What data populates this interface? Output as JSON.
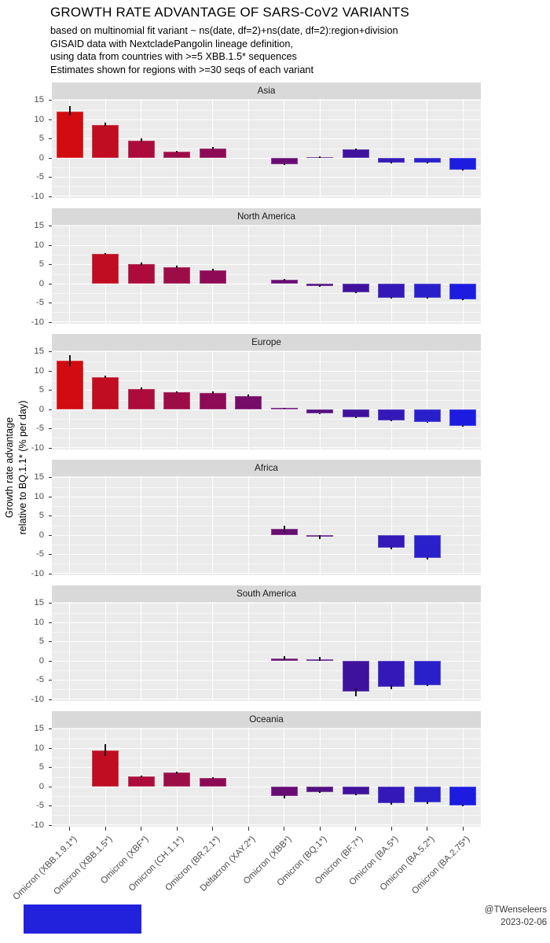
{
  "header": {
    "title": "GROWTH RATE ADVANTAGE OF SARS-CoV2 VARIANTS",
    "subtitle_lines": [
      "based on multinomial fit variant ~ ns(date, df=2)+ns(date, df=2):region+division",
      "GISAID data with NextcladePangolin lineage definition,",
      "using data from countries with >=5 XBB.1.5* sequences",
      "Estimates shown for regions with >=30 seqs of each variant"
    ]
  },
  "chart_data": {
    "type": "bar",
    "facet_by": "region",
    "regions": [
      "Asia",
      "North America",
      "Europe",
      "Africa",
      "South America",
      "Oceania"
    ],
    "categories": [
      "Omicron (XBB.1.9.1*)",
      "Omicron (XBB.1.5*)",
      "Omicron (XBF*)",
      "Omicron (CH.1.1*)",
      "Omicron (BR.2.1*)",
      "Deltacron (XAY.2*)",
      "Omicron (XBB*)",
      "Omicron (BQ.1*)",
      "Omicron (BF.7*)",
      "Omicron (BA.5*)",
      "Omicron (BA.5.2*)",
      "Omicron (BA.2.75*)"
    ],
    "bar_colors": [
      "#D10B10",
      "#C00D21",
      "#AC0B3B",
      "#9C0D48",
      "#8D0A57",
      "#770C69",
      "#680C74",
      "#531081",
      "#3F129E",
      "#3418B8",
      "#2A20CB",
      "#1B1CE0"
    ],
    "ylabel_lines": [
      "Growth rate advantage",
      "relative to BQ.1.1* (% per day)"
    ],
    "yticks": [
      15,
      10,
      5,
      0,
      -5,
      -10
    ],
    "yminor": [
      12.5,
      7.5,
      2.5,
      -2.5,
      -7.5
    ],
    "ylim": [
      -10.4,
      15.4
    ],
    "grid": "white major and minor horizontal lines, white vertical lines at category centers, gray panel background",
    "legend": "none",
    "facets": [
      {
        "region": "Asia",
        "values": [
          12.2,
          8.7,
          4.6,
          1.7,
          2.5,
          null,
          -1.5,
          0.3,
          2.3,
          -1.2,
          -1.2,
          -3.0
        ],
        "error_low": [
          11.0,
          8.2,
          4.2,
          1.5,
          2.2,
          null,
          -1.8,
          0.1,
          2.1,
          -1.4,
          -1.4,
          -3.3
        ],
        "error_high": [
          13.6,
          9.3,
          5.2,
          1.9,
          2.9,
          null,
          -1.3,
          0.5,
          2.5,
          -1.0,
          -1.0,
          -2.8
        ]
      },
      {
        "region": "North America",
        "values": [
          null,
          7.8,
          5.1,
          4.4,
          3.6,
          null,
          1.1,
          -0.5,
          -2.2,
          -3.7,
          -3.6,
          -4.0
        ],
        "error_low": [
          null,
          7.6,
          4.8,
          4.2,
          3.3,
          null,
          0.9,
          -0.7,
          -2.4,
          -3.9,
          -3.8,
          -4.2
        ],
        "error_high": [
          null,
          8.0,
          5.5,
          4.7,
          4.0,
          null,
          1.3,
          -0.4,
          -2.1,
          -3.5,
          -3.5,
          -3.8
        ]
      },
      {
        "region": "Europe",
        "values": [
          12.8,
          8.5,
          5.4,
          4.5,
          4.4,
          3.6,
          0.4,
          -1.0,
          -2.0,
          -2.8,
          -3.3,
          -4.2
        ],
        "error_low": [
          11.3,
          8.2,
          5.1,
          4.3,
          4.1,
          3.3,
          0.2,
          -1.2,
          -2.2,
          -3.0,
          -3.5,
          -4.4
        ],
        "error_high": [
          14.2,
          8.9,
          5.8,
          4.7,
          4.7,
          4.0,
          0.5,
          -0.9,
          -1.9,
          -2.7,
          -3.2,
          -4.0
        ]
      },
      {
        "region": "Africa",
        "values": [
          null,
          null,
          null,
          null,
          null,
          null,
          1.7,
          -0.4,
          null,
          -3.3,
          -5.9,
          null
        ],
        "error_low": [
          null,
          null,
          null,
          null,
          null,
          null,
          0.9,
          -1.0,
          null,
          -3.7,
          -6.3,
          null
        ],
        "error_high": [
          null,
          null,
          null,
          null,
          null,
          null,
          2.5,
          0.1,
          null,
          -3.0,
          -5.6,
          null
        ]
      },
      {
        "region": "South America",
        "values": [
          null,
          null,
          null,
          null,
          null,
          null,
          0.7,
          0.5,
          -8.0,
          -6.8,
          -6.3,
          null
        ],
        "error_low": [
          null,
          null,
          null,
          null,
          null,
          null,
          0.2,
          0.1,
          -9.2,
          -7.3,
          -6.6,
          null
        ],
        "error_high": [
          null,
          null,
          null,
          null,
          null,
          null,
          1.2,
          1.0,
          -7.2,
          -6.4,
          -6.0,
          null
        ]
      },
      {
        "region": "Oceania",
        "values": [
          null,
          9.5,
          2.8,
          3.7,
          2.2,
          null,
          -2.5,
          -1.3,
          -2.0,
          -4.2,
          -4.1,
          -4.8
        ],
        "error_low": [
          null,
          8.0,
          2.6,
          3.4,
          2.0,
          null,
          -3.0,
          -1.6,
          -2.3,
          -4.6,
          -4.4,
          -5.1
        ],
        "error_high": [
          null,
          11.0,
          3.0,
          3.9,
          2.4,
          null,
          -2.2,
          -1.1,
          -1.8,
          -4.0,
          -3.9,
          -4.6
        ]
      }
    ]
  },
  "caption": {
    "handle": "@TWenseleers",
    "date": "2023-02-06"
  },
  "footer_swatch": {
    "color": "#2222DD"
  }
}
